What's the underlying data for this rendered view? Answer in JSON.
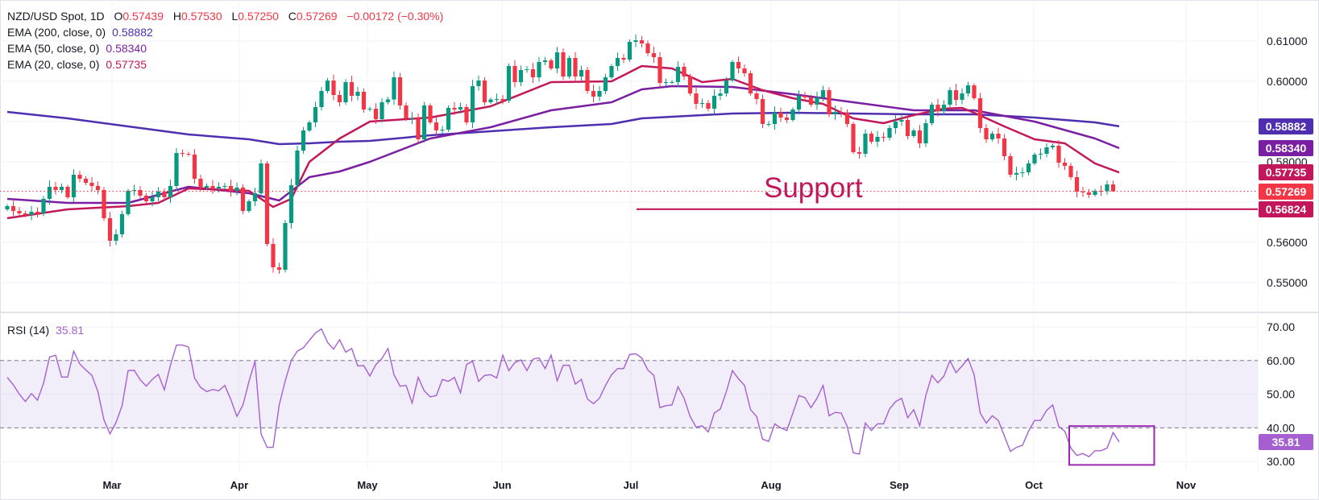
{
  "header": {
    "symbol": "NZD/USD Spot, 1D",
    "open_label": "O",
    "open": "0.57439",
    "high_label": "H",
    "high": "0.57530",
    "low_label": "L",
    "low": "0.57250",
    "close_label": "C",
    "close": "0.57269",
    "change": "−0.00172 (−0.30%)"
  },
  "indicators": [
    {
      "label": "EMA (200, close, 0)",
      "value": "0.58882",
      "color": "#4f2fb0"
    },
    {
      "label": "EMA (50, close, 0)",
      "value": "0.58340",
      "color": "#7b1fa2"
    },
    {
      "label": "EMA (20, close, 0)",
      "value": "0.57735",
      "color": "#c2185b"
    }
  ],
  "annotation": {
    "support_text": "Support",
    "support_level": "0.56824",
    "support_value": 0.56824,
    "color": "#c2185b"
  },
  "rsi": {
    "label": "RSI (14)",
    "value": "35.81",
    "color": "#a55fd0"
  },
  "chart_data": [
    {
      "type": "candlestick",
      "up_color": "#089981",
      "down_color": "#f23645",
      "x_tick_labels": [
        "Mar",
        "Apr",
        "May",
        "Jun",
        "Jul",
        "Aug",
        "Sep",
        "Oct",
        "Nov"
      ],
      "y_tick_labels": [
        "0.61000",
        "0.60000",
        "0.58000",
        "0.56000",
        "0.55000"
      ],
      "ylim": [
        0.545,
        0.6165
      ],
      "grid": true,
      "last_price": "0.57269",
      "last_price_value": 0.57269,
      "last_candle": {
        "open": 0.57439,
        "high": 0.5753,
        "low": 0.5725,
        "close": 0.57269
      },
      "closes": [
        0.569,
        0.5678,
        0.5672,
        0.5668,
        0.5676,
        0.5672,
        0.5708,
        0.5738,
        0.573,
        0.5738,
        0.5712,
        0.5768,
        0.5758,
        0.5748,
        0.574,
        0.573,
        0.566,
        0.5604,
        0.562,
        0.567,
        0.5728,
        0.573,
        0.5716,
        0.5702,
        0.5712,
        0.5726,
        0.5712,
        0.574,
        0.5822,
        0.582,
        0.5818,
        0.5758,
        0.5736,
        0.574,
        0.5734,
        0.5738,
        0.574,
        0.5728,
        0.5736,
        0.5678,
        0.5702,
        0.5722,
        0.5796,
        0.5596,
        0.5538,
        0.5532,
        0.5648,
        0.5742,
        0.5828,
        0.5878,
        0.5898,
        0.5936,
        0.5976,
        0.6002,
        0.5966,
        0.5948,
        0.5998,
        0.5964,
        0.5974,
        0.593,
        0.5932,
        0.5906,
        0.5948,
        0.5955,
        0.601,
        0.594,
        0.5908,
        0.5908,
        0.5856,
        0.594,
        0.5898,
        0.5878,
        0.588,
        0.5934,
        0.593,
        0.5936,
        0.5898,
        0.5988,
        0.6002,
        0.5948,
        0.5955,
        0.5956,
        0.5952,
        0.6038,
        0.5998,
        0.6028,
        0.603,
        0.601,
        0.6048,
        0.6052,
        0.6032,
        0.6072,
        0.6012,
        0.6058,
        0.6012,
        0.6028,
        0.5976,
        0.5962,
        0.5976,
        0.601,
        0.6038,
        0.6058,
        0.6054,
        0.6098,
        0.6102,
        0.6094,
        0.607,
        0.606,
        0.5996,
        0.5998,
        0.5998,
        0.6036,
        0.6012,
        0.597,
        0.5944,
        0.5946,
        0.5932,
        0.5964,
        0.597,
        0.6002,
        0.6048,
        0.6032,
        0.602,
        0.597,
        0.5956,
        0.5894,
        0.5894,
        0.5922,
        0.591,
        0.5904,
        0.593,
        0.5964,
        0.596,
        0.5942,
        0.596,
        0.5978,
        0.5918,
        0.5924,
        0.5922,
        0.5894,
        0.5824,
        0.582,
        0.587,
        0.585,
        0.5862,
        0.586,
        0.5884,
        0.59,
        0.5904,
        0.5864,
        0.5878,
        0.5846,
        0.5896,
        0.5942,
        0.5926,
        0.5942,
        0.5978,
        0.5954,
        0.597,
        0.599,
        0.5958,
        0.5884,
        0.5856,
        0.587,
        0.5858,
        0.5814,
        0.5768,
        0.5772,
        0.5774,
        0.5796,
        0.5818,
        0.582,
        0.5836,
        0.584,
        0.5798,
        0.579,
        0.5762,
        0.5726,
        0.5724,
        0.5718,
        0.5728,
        0.5727,
        0.5744,
        0.57269
      ],
      "ema_series": [
        {
          "name": "EMA (200, close, 0)",
          "color": "#4f2fb0",
          "points": [
            [
              0,
              0.5924
            ],
            [
              10,
              0.5908
            ],
            [
              20,
              0.5888
            ],
            [
              30,
              0.5868
            ],
            [
              40,
              0.5856
            ],
            [
              45,
              0.5844
            ],
            [
              50,
              0.5846
            ],
            [
              55,
              0.585
            ],
            [
              60,
              0.5852
            ],
            [
              70,
              0.5866
            ],
            [
              80,
              0.5876
            ],
            [
              90,
              0.5886
            ],
            [
              100,
              0.5894
            ],
            [
              105,
              0.5908
            ],
            [
              110,
              0.5912
            ],
            [
              120,
              0.592
            ],
            [
              130,
              0.5922
            ],
            [
              140,
              0.592
            ],
            [
              150,
              0.5918
            ],
            [
              160,
              0.5918
            ],
            [
              170,
              0.591
            ],
            [
              180,
              0.5898
            ],
            [
              184,
              0.58882
            ]
          ]
        },
        {
          "name": "EMA (50, close, 0)",
          "color": "#7b1fa2",
          "points": [
            [
              0,
              0.5708
            ],
            [
              10,
              0.5698
            ],
            [
              20,
              0.5698
            ],
            [
              30,
              0.5738
            ],
            [
              40,
              0.5722
            ],
            [
              45,
              0.5704
            ],
            [
              50,
              0.5762
            ],
            [
              55,
              0.5776
            ],
            [
              60,
              0.58
            ],
            [
              70,
              0.5858
            ],
            [
              80,
              0.5886
            ],
            [
              90,
              0.5928
            ],
            [
              100,
              0.5948
            ],
            [
              105,
              0.598
            ],
            [
              110,
              0.5988
            ],
            [
              120,
              0.5986
            ],
            [
              130,
              0.5968
            ],
            [
              140,
              0.5948
            ],
            [
              150,
              0.5928
            ],
            [
              160,
              0.5928
            ],
            [
              170,
              0.59
            ],
            [
              180,
              0.5858
            ],
            [
              184,
              0.5834
            ]
          ]
        },
        {
          "name": "EMA (20, close, 0)",
          "color": "#c2185b",
          "points": [
            [
              0,
              0.566
            ],
            [
              10,
              0.5682
            ],
            [
              20,
              0.569
            ],
            [
              25,
              0.5698
            ],
            [
              30,
              0.5734
            ],
            [
              40,
              0.5728
            ],
            [
              44,
              0.5688
            ],
            [
              47,
              0.5708
            ],
            [
              50,
              0.58
            ],
            [
              55,
              0.5858
            ],
            [
              60,
              0.59
            ],
            [
              70,
              0.591
            ],
            [
              80,
              0.5938
            ],
            [
              90,
              0.5998
            ],
            [
              100,
              0.6
            ],
            [
              105,
              0.6038
            ],
            [
              110,
              0.6032
            ],
            [
              115,
              0.5998
            ],
            [
              120,
              0.6006
            ],
            [
              125,
              0.5978
            ],
            [
              130,
              0.5958
            ],
            [
              135,
              0.5944
            ],
            [
              140,
              0.5908
            ],
            [
              145,
              0.5896
            ],
            [
              150,
              0.5916
            ],
            [
              155,
              0.5932
            ],
            [
              158,
              0.5934
            ],
            [
              160,
              0.5922
            ],
            [
              165,
              0.5888
            ],
            [
              170,
              0.5856
            ],
            [
              175,
              0.5846
            ],
            [
              180,
              0.5796
            ],
            [
              184,
              0.57735
            ]
          ]
        }
      ],
      "axis_value_labels": [
        {
          "text": "0.58882",
          "value": 0.58882,
          "color": "#4f2fb0"
        },
        {
          "text": "0.58340",
          "value": 0.5834,
          "color": "#7b1fa2"
        },
        {
          "text": "0.57735",
          "value": 0.57735,
          "color": "#c2185b"
        },
        {
          "text": "0.57269",
          "value": 0.57269,
          "color": "#f23645"
        },
        {
          "text": "0.56824",
          "value": 0.56824,
          "color": "#c2185b"
        }
      ]
    },
    {
      "type": "line",
      "name": "RSI (14)",
      "color": "#a55fd0",
      "ylim": [
        27,
        74
      ],
      "y_tick_labels": [
        "70.00",
        "60.00",
        "50.00",
        "40.00",
        "30.00"
      ],
      "band": [
        40,
        60
      ],
      "band_color": "#7e57c2",
      "highlight_box": {
        "from_session": 176,
        "to_session": 189,
        "rsi_range": [
          29,
          41
        ],
        "color": "#9c27b0"
      },
      "values": [
        55.0,
        52.8,
        50.0,
        47.8,
        50.2,
        48.2,
        53.2,
        61.0,
        61.6,
        55.1,
        55.1,
        62.8,
        59.0,
        57.2,
        55.6,
        50.8,
        42.4,
        38.2,
        41.6,
        46.6,
        57.0,
        57.1,
        54.3,
        52.4,
        54.4,
        55.9,
        51.3,
        58.6,
        64.6,
        64.6,
        64.0,
        54.8,
        52.0,
        50.8,
        51.4,
        51.0,
        52.6,
        48.4,
        43.4,
        46.8,
        53.8,
        59.8,
        38.2,
        34.2,
        34.2,
        46.8,
        54.0,
        60.0,
        62.8,
        63.8,
        66.0,
        68.2,
        69.4,
        65.4,
        63.4,
        66.2,
        62.5,
        63.6,
        58.4,
        58.5,
        55.4,
        58.8,
        60.6,
        63.6,
        55.8,
        52.4,
        52.6,
        47.4,
        55.0,
        51.0,
        49.2,
        49.6,
        54.4,
        53.8,
        55.0,
        50.4,
        58.8,
        59.8,
        53.8,
        55.6,
        55.8,
        54.8,
        61.6,
        57.0,
        59.4,
        60.2,
        57.0,
        60.4,
        60.8,
        57.6,
        61.6,
        54.0,
        58.6,
        58.6,
        53.0,
        54.4,
        48.6,
        47.2,
        48.8,
        52.6,
        55.8,
        57.6,
        57.6,
        61.8,
        62.0,
        60.8,
        57.2,
        55.6,
        46.0,
        46.6,
        46.8,
        52.2,
        48.8,
        43.4,
        40.2,
        40.6,
        38.8,
        44.4,
        45.6,
        50.8,
        57.0,
        54.6,
        52.6,
        45.4,
        43.4,
        36.6,
        36.0,
        41.2,
        40.0,
        39.2,
        44.4,
        49.6,
        49.0,
        46.0,
        48.8,
        52.6,
        43.6,
        44.6,
        44.4,
        40.4,
        32.6,
        32.2,
        41.4,
        39.2,
        41.2,
        41.2,
        45.6,
        47.8,
        48.8,
        43.0,
        45.4,
        40.6,
        49.6,
        55.6,
        53.4,
        55.4,
        60.0,
        56.4,
        58.4,
        60.6,
        55.8,
        44.4,
        41.4,
        43.6,
        42.2,
        37.6,
        33.0,
        34.2,
        34.8,
        39.0,
        42.2,
        42.2,
        45.2,
        46.8,
        40.4,
        39.0,
        34.0,
        31.8,
        32.4,
        31.4,
        33.2,
        33.2,
        34.0,
        38.6,
        35.81
      ]
    }
  ]
}
